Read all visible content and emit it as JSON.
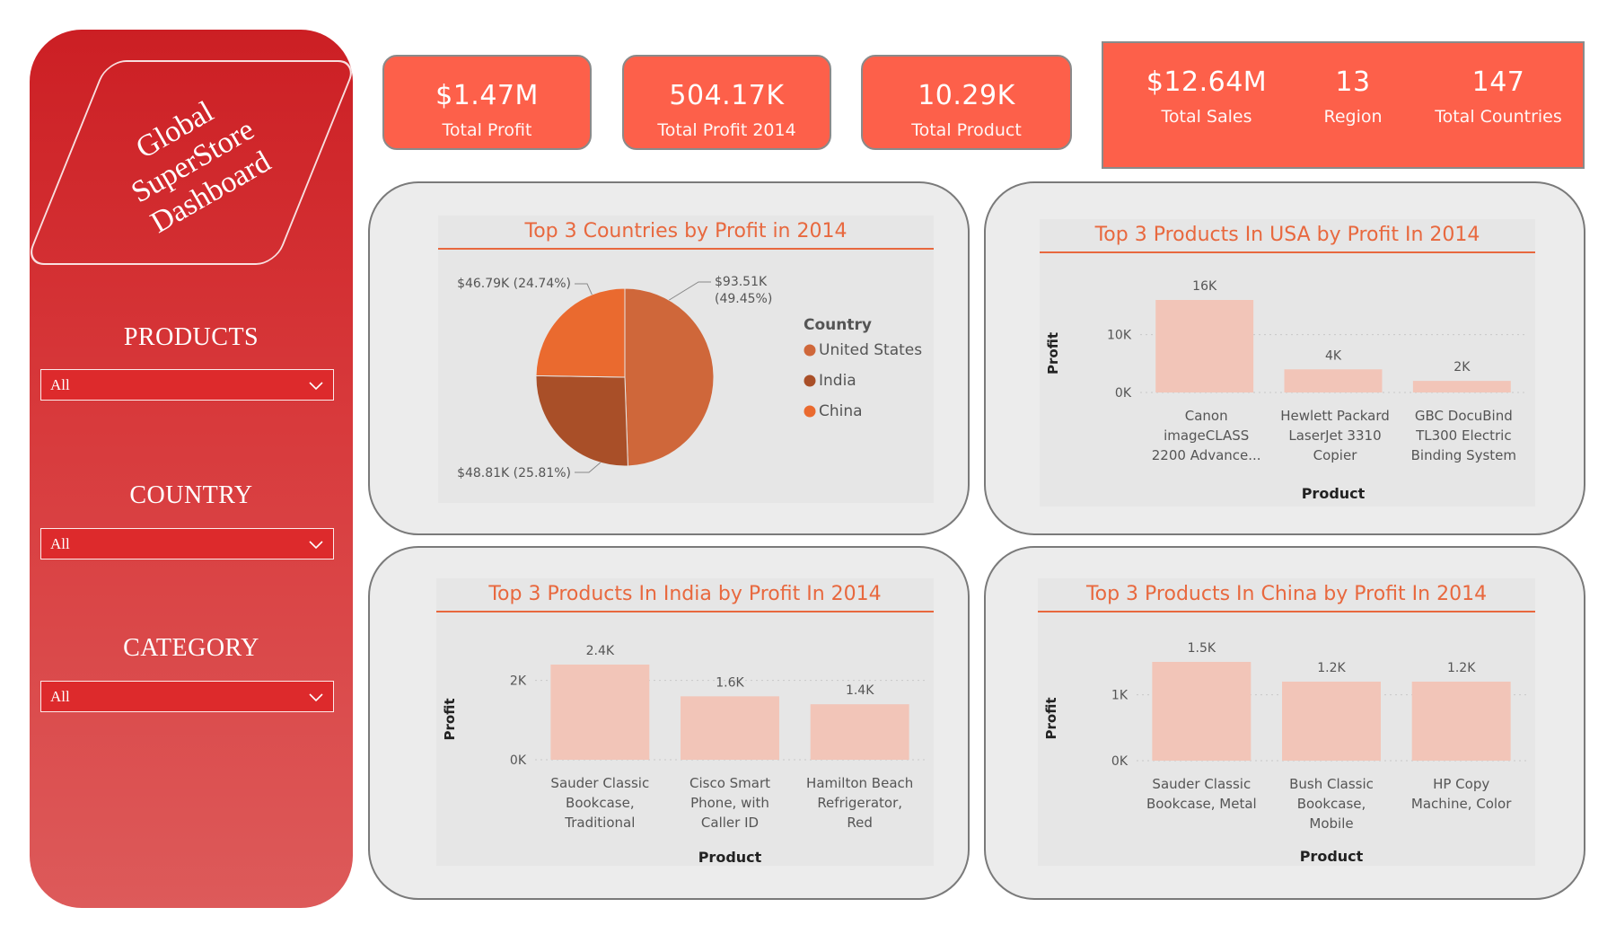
{
  "sidebar": {
    "logo_lines": [
      "Global",
      "SuperStore",
      "Dashboard"
    ],
    "filters": [
      {
        "label": "PRODUCTS",
        "value": "All"
      },
      {
        "label": "COUNTRY",
        "value": "All"
      },
      {
        "label": "CATEGORY",
        "value": "All"
      }
    ]
  },
  "kpis": [
    {
      "value": "$1.47M",
      "label": "Total Profit"
    },
    {
      "value": "504.17K",
      "label": "Total Profit 2014"
    },
    {
      "value": "10.29K",
      "label": "Total Product"
    }
  ],
  "kpi_group": [
    {
      "value": "$12.64M",
      "label": "Total Sales"
    },
    {
      "value": "13",
      "label": "Region"
    },
    {
      "value": "147",
      "label": "Total Countries"
    }
  ],
  "colors": {
    "sidebar": "#d32a2d",
    "kpi": "#fd604a",
    "title": "#e8683e",
    "bar": "#f2c5b8",
    "pie": [
      "#cf673a",
      "#a94f28",
      "#ea6a2f"
    ]
  },
  "chart_data": [
    {
      "type": "pie",
      "title": "Top 3 Countries by Profit in 2014",
      "legend_title": "Country",
      "legend_position": "right",
      "slices": [
        {
          "name": "United States",
          "value": 93.51,
          "label": "$93.51K",
          "pct": "(49.45%)"
        },
        {
          "name": "India",
          "value": 48.81,
          "label": "$48.81K (25.81%)"
        },
        {
          "name": "China",
          "value": 46.79,
          "label": "$46.79K (24.74%)"
        }
      ]
    },
    {
      "type": "bar",
      "title": "Top 3 Products In USA by Profit In 2014",
      "xlabel": "Product",
      "ylabel": "Profit",
      "ylim": [
        0,
        16000
      ],
      "yticks": [
        {
          "v": 0,
          "label": "0K"
        },
        {
          "v": 10000,
          "label": "10K"
        }
      ],
      "categories": [
        [
          "Canon",
          "imageCLASS",
          "2200 Advance..."
        ],
        [
          "Hewlett Packard",
          "LaserJet 3310",
          "Copier"
        ],
        [
          "GBC DocuBind",
          "TL300 Electric",
          "Binding System"
        ]
      ],
      "values": [
        16000,
        4000,
        2000
      ],
      "data_labels": [
        "16K",
        "4K",
        "2K"
      ]
    },
    {
      "type": "bar",
      "title": "Top 3 Products In India by Profit In 2014",
      "xlabel": "Product",
      "ylabel": "Profit",
      "ylim": [
        0,
        2400
      ],
      "yticks": [
        {
          "v": 0,
          "label": "0K"
        },
        {
          "v": 2000,
          "label": "2K"
        }
      ],
      "categories": [
        [
          "Sauder Classic",
          "Bookcase,",
          "Traditional"
        ],
        [
          "Cisco Smart",
          "Phone, with",
          "Caller ID"
        ],
        [
          "Hamilton Beach",
          "Refrigerator,",
          "Red"
        ]
      ],
      "values": [
        2400,
        1600,
        1400
      ],
      "data_labels": [
        "2.4K",
        "1.6K",
        "1.4K"
      ]
    },
    {
      "type": "bar",
      "title": "Top 3 Products In China by Profit In 2014",
      "xlabel": "Product",
      "ylabel": "Profit",
      "ylim": [
        0,
        1500
      ],
      "yticks": [
        {
          "v": 0,
          "label": "0K"
        },
        {
          "v": 1000,
          "label": "1K"
        }
      ],
      "categories": [
        [
          "Sauder Classic",
          "Bookcase, Metal"
        ],
        [
          "Bush Classic",
          "Bookcase,",
          "Mobile"
        ],
        [
          "HP Copy",
          "Machine, Color"
        ]
      ],
      "values": [
        1500,
        1200,
        1200
      ],
      "data_labels": [
        "1.5K",
        "1.2K",
        "1.2K"
      ]
    }
  ]
}
